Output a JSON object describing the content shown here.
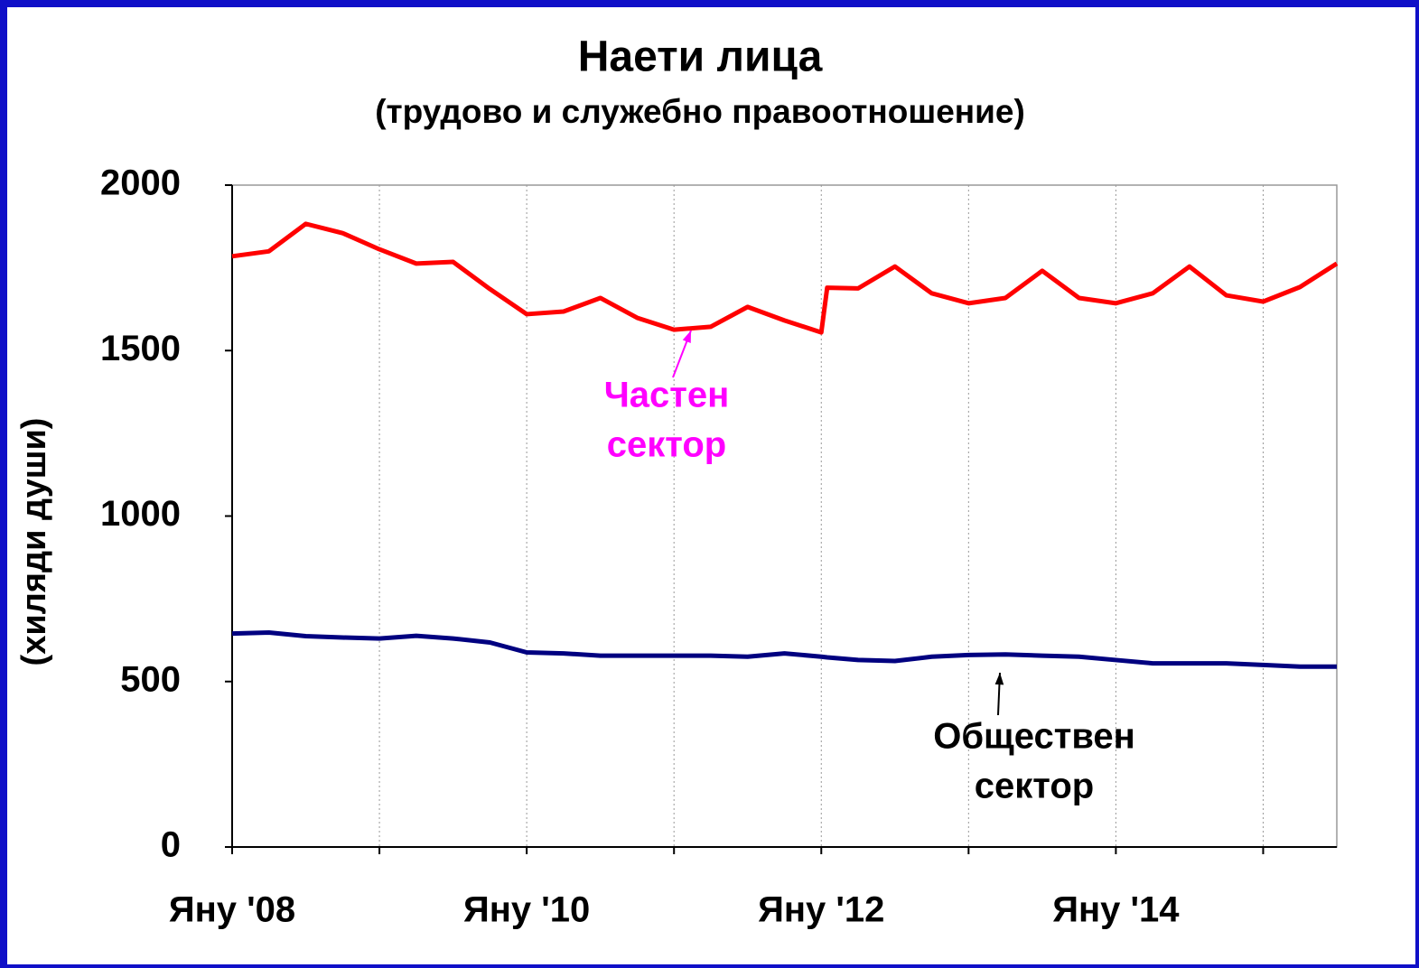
{
  "chart_data": {
    "type": "line",
    "title": "Наети лица",
    "subtitle": "(трудово и служебно правоотношение)",
    "y_label": "(хиляди души)",
    "x": [
      2008,
      2008.25,
      2008.5,
      2008.75,
      2009,
      2009.25,
      2009.5,
      2009.75,
      2010,
      2010.25,
      2010.5,
      2010.75,
      2011,
      2011.25,
      2011.5,
      2011.75,
      2012,
      2012.04,
      2012.25,
      2012.5,
      2012.75,
      2013,
      2013.25,
      2013.5,
      2013.75,
      2014,
      2014.25,
      2014.5,
      2014.75,
      2015,
      2015.25,
      2015.5
    ],
    "series": [
      {
        "name": "Частен сектор",
        "color": "#ff0000",
        "values": [
          1785,
          1800,
          1883,
          1855,
          1806,
          1763,
          1768,
          1686,
          1610,
          1618,
          1659,
          1599,
          1563,
          1572,
          1632,
          1591,
          1555,
          1690,
          1688,
          1754,
          1673,
          1643,
          1659,
          1741,
          1659,
          1643,
          1673,
          1754,
          1667,
          1648,
          1692,
          1763
        ]
      },
      {
        "name": "Обществен сектор",
        "color": "#000080",
        "values": [
          645,
          648,
          637,
          633,
          630,
          638,
          630,
          618,
          588,
          585,
          578,
          578,
          578,
          578,
          575,
          585,
          575,
          573,
          565,
          562,
          575,
          580,
          582,
          578,
          575,
          565,
          555,
          555,
          555,
          550,
          545,
          545
        ]
      }
    ],
    "annotations": [
      {
        "lines": [
          "Частен",
          "сектор"
        ],
        "color": "#ff00ff"
      },
      {
        "lines": [
          "Обществен",
          "сектор"
        ],
        "color": "#000000"
      }
    ],
    "xlim": [
      2008,
      2015.5
    ],
    "xticks": [
      {
        "value": 2008,
        "label": "Яну '08"
      },
      {
        "value": 2009,
        "label": null
      },
      {
        "value": 2010,
        "label": "Яну '10"
      },
      {
        "value": 2011,
        "label": null
      },
      {
        "value": 2012,
        "label": "Яну '12"
      },
      {
        "value": 2013,
        "label": null
      },
      {
        "value": 2014,
        "label": "Яну '14"
      },
      {
        "value": 2015,
        "label": null
      }
    ],
    "ylim": [
      0,
      2000
    ],
    "yticks": [
      0,
      500,
      1000,
      1500,
      2000
    ],
    "grid": true
  }
}
